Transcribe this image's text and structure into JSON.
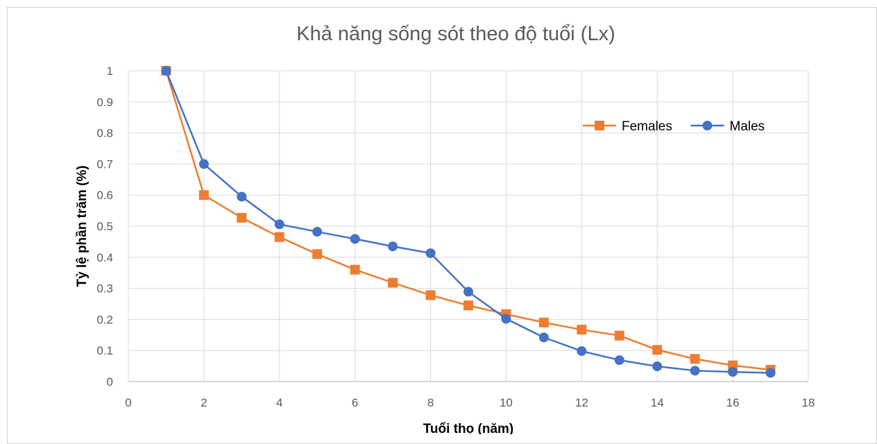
{
  "chart_data": {
    "type": "line",
    "title": "Khả năng sống sót theo độ tuổi (Lx)",
    "xlabel": "Tuổi thọ (năm)",
    "ylabel": "Tỷ lệ phần trăm  (%)",
    "xlim": [
      0,
      18
    ],
    "ylim": [
      0,
      1
    ],
    "xticks": [
      "0",
      "2",
      "4",
      "6",
      "8",
      "10",
      "12",
      "14",
      "16",
      "18"
    ],
    "yticks": [
      "0",
      "0.1",
      "0.2",
      "0.3",
      "0.4",
      "0.5",
      "0.6",
      "0.7",
      "0.8",
      "0.9",
      "1"
    ],
    "grid": true,
    "legend_position": "top-right",
    "x": [
      1,
      2,
      3,
      4,
      5,
      6,
      7,
      8,
      9,
      10,
      11,
      12,
      13,
      14,
      15,
      16,
      17
    ],
    "series": [
      {
        "name": "Females",
        "color": "#ed7d31",
        "marker": "square",
        "values": [
          1.0,
          0.6,
          0.527,
          0.465,
          0.41,
          0.36,
          0.318,
          0.278,
          0.245,
          0.217,
          0.19,
          0.167,
          0.148,
          0.102,
          0.073,
          0.052,
          0.038
        ]
      },
      {
        "name": "Males",
        "color": "#4472c4",
        "marker": "circle",
        "values": [
          1.0,
          0.7,
          0.595,
          0.506,
          0.482,
          0.459,
          0.435,
          0.413,
          0.289,
          0.202,
          0.142,
          0.098,
          0.069,
          0.049,
          0.035,
          0.031,
          0.028
        ]
      }
    ]
  }
}
